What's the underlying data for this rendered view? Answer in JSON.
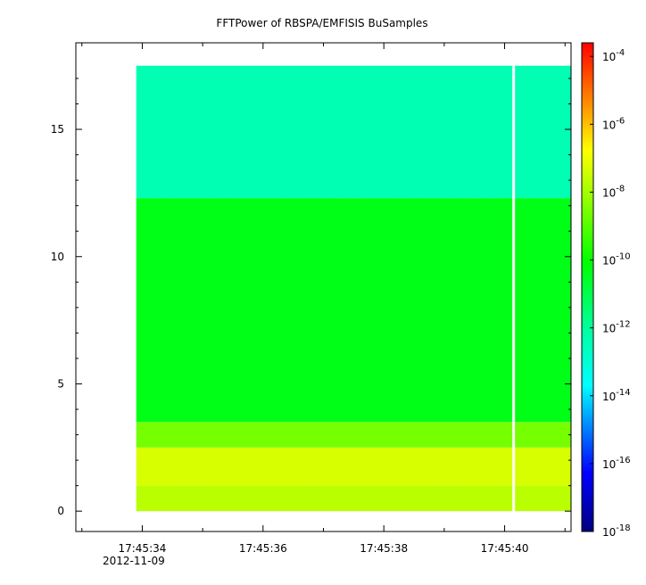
{
  "chart_data": {
    "type": "heatmap",
    "title": "FFTPower of RBSPA/EMFISIS  BuSamples",
    "xlabel": "",
    "ylabel": "",
    "x_ticks": [
      "17:45:34",
      "17:45:36",
      "17:45:38",
      "17:45:40"
    ],
    "x_tick_seconds": [
      34,
      36,
      38,
      40
    ],
    "x_range_seconds": [
      32.9,
      41.1
    ],
    "date_label": "2012-11-09",
    "y_ticks": [
      0,
      5,
      10,
      15
    ],
    "ylim": [
      -0.8,
      18.4
    ],
    "data_x_start_seconds": 33.9,
    "data_x_end_seconds": 41.1,
    "data_y_range": [
      0,
      17.5
    ],
    "gap_x_seconds": 40.15,
    "bands": [
      {
        "y_from": 0.0,
        "y_to": 1.0,
        "log10_power": -7.7
      },
      {
        "y_from": 1.0,
        "y_to": 2.5,
        "log10_power": -7.3
      },
      {
        "y_from": 2.5,
        "y_to": 3.5,
        "log10_power": -8.6
      },
      {
        "y_from": 3.5,
        "y_to": 12.3,
        "log10_power": -10.3
      },
      {
        "y_from": 12.3,
        "y_to": 17.5,
        "log10_power": -12.4
      }
    ],
    "colorbar": {
      "scale": "log",
      "range_log10": [
        -18,
        -3.6
      ],
      "tick_exponents": [
        -4,
        -6,
        -8,
        -10,
        -12,
        -14,
        -16,
        -18
      ],
      "tick_base": "10"
    },
    "grid": false
  }
}
